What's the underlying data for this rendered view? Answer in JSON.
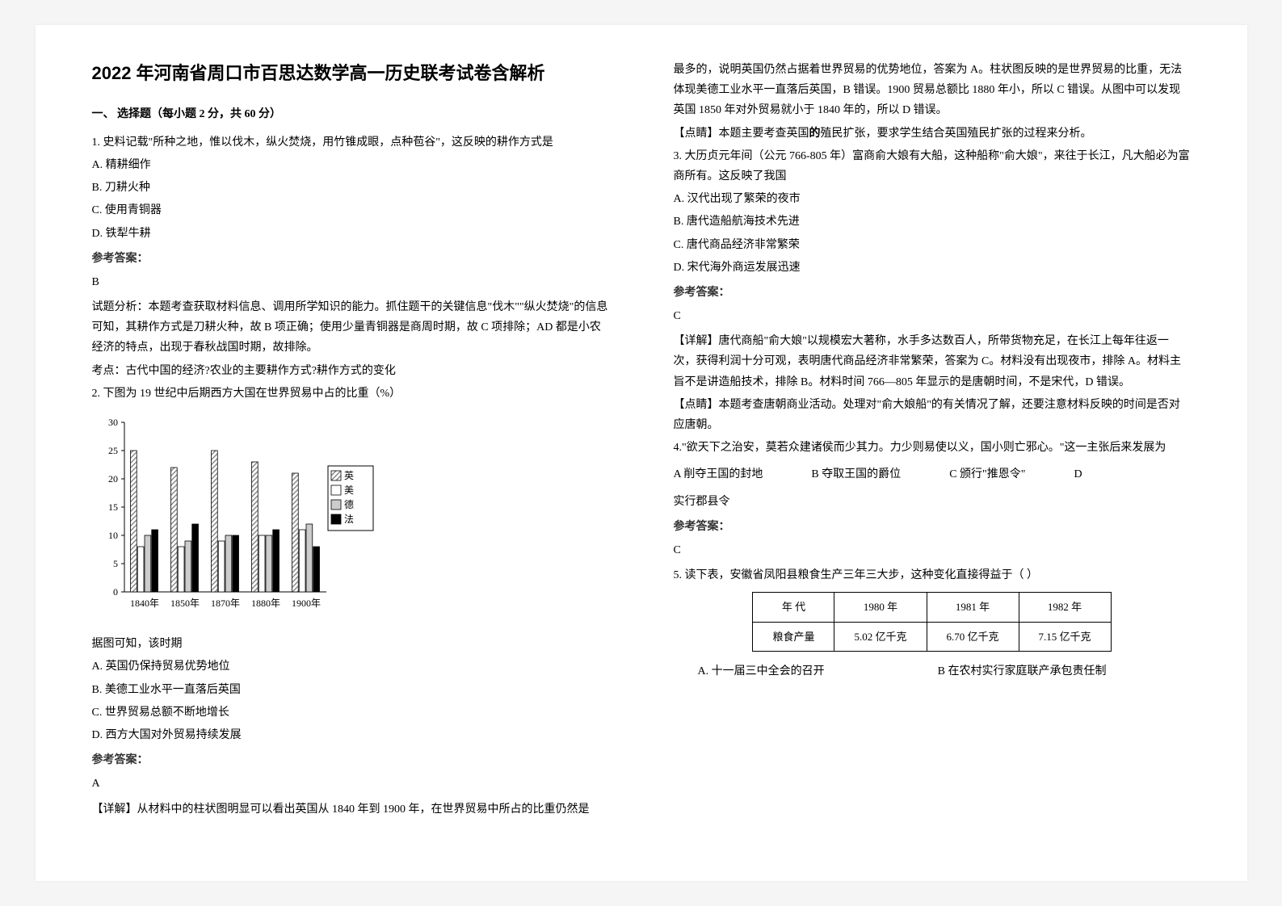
{
  "title": "2022 年河南省周口市百思达数学高一历史联考试卷含解析",
  "section1_head": "一、 选择题（每小题 2 分，共 60 分）",
  "q1": {
    "stem": "1. 史料记载\"所种之地，惟以伐木，纵火焚烧，用竹锥成眼，点种苞谷\"，这反映的耕作方式是",
    "A": "A. 精耕细作",
    "B": "B. 刀耕火种",
    "C": "C. 使用青铜器",
    "D": "D. 铁犁牛耕",
    "ref_label": "参考答案：",
    "answer": "B",
    "exp1": "试题分析：本题考查获取材料信息、调用所学知识的能力。抓住题干的关键信息\"伐木\"\"纵火焚烧\"的信息可知，其耕作方式是刀耕火种，故 B 项正确；使用少量青铜器是商周时期，故 C 项排除；AD 都是小农经济的特点，出现于春秋战国时期，故排除。",
    "exp2": "考点：古代中国的经济?农业的主要耕作方式?耕作方式的变化"
  },
  "q2": {
    "stem": "2. 下图为 19 世纪中后期西方大国在世界贸易中占的比重（%）",
    "chart": {
      "type": "bar",
      "categories": [
        "1840年",
        "1850年",
        "1870年",
        "1880年",
        "1900年"
      ],
      "series": [
        {
          "name": "英",
          "values": [
            25,
            22,
            25,
            23,
            21
          ],
          "fill": "hatch",
          "color": "#888888"
        },
        {
          "name": "美",
          "values": [
            8,
            8,
            9,
            10,
            11
          ],
          "fill": "solid",
          "color": "#ffffff",
          "stroke": "#000000"
        },
        {
          "name": "德",
          "values": [
            10,
            9,
            10,
            10,
            12
          ],
          "fill": "solid",
          "color": "#cccccc"
        },
        {
          "name": "法",
          "values": [
            11,
            12,
            10,
            11,
            8
          ],
          "fill": "solid",
          "color": "#000000"
        }
      ],
      "ylim": [
        0,
        30
      ],
      "ytick_step": 5,
      "bar_group_width": 0.7,
      "background": "#ffffff",
      "axis_color": "#000000",
      "legend_position": "right",
      "legend_border": "#000000"
    },
    "after_chart": "据图可知，该时期",
    "A": "A. 英国仍保持贸易优势地位",
    "B": "B. 美德工业水平一直落后英国",
    "C": "C. 世界贸易总额不断地增长",
    "D": "D. 西方大国对外贸易持续发展",
    "ref_label": "参考答案：",
    "answer": "A",
    "exp1": "【详解】从材料中的柱状图明显可以看出英国从 1840 年到 1900 年，在世界贸易中所占的比重仍然是"
  },
  "col2_cont": {
    "line1": "最多的，说明英国仍然占据着世界贸易的优势地位，答案为 A。柱状图反映的是世界贸易的比重，无法体现美德工业水平一直落后英国，B 错误。1900 贸易总额比 1880 年小，所以 C 错误。从图中可以发现英国 1850 年对外贸易就小于 1840 年的，所以 D 错误。",
    "line2a": "【点睛】本题主要考查英国",
    "line2b": "的",
    "line2c": "殖民扩张，要求学生结合英国殖民扩张的过程来分析。"
  },
  "q3": {
    "stem": "3. 大历贞元年间（公元 766-805 年）富商俞大娘有大船，这种船称\"俞大娘\"，来往于长江，凡大船必为富商所有。这反映了我国",
    "A": "A. 汉代出现了繁荣的夜市",
    "B": "B. 唐代造船航海技术先进",
    "C": "C. 唐代商品经济非常繁荣",
    "D": "D. 宋代海外商运发展迅速",
    "ref_label": "参考答案：",
    "answer": "C",
    "exp1": "【详解】唐代商船\"俞大娘\"以规模宏大著称，水手多达数百人，所带货物充足，在长江上每年往返一次，获得利润十分可观，表明唐代商品经济非常繁荣，答案为 C。材料没有出现夜市，排除 A。材料主旨不是讲造船技术，排除 B。材料时间 766—805 年显示的是唐朝时间，不是宋代，D 错误。",
    "exp2": "【点睛】本题考查唐朝商业活动。处理对\"俞大娘船\"的有关情况了解，还要注意材料反映的时间是否对应唐朝。"
  },
  "q4": {
    "stem": "4.\"欲天下之治安，莫若众建诸侯而少其力。力少则易使以义，国小则亡邪心。\"这一主张后来发展为",
    "A": "A 削夺王国的封地",
    "B": "B 夺取王国的爵位",
    "C": "C 颁行\"推恩令\"",
    "D_prefix": "D",
    "D_rest": "实行郡县令",
    "ref_label": "参考答案：",
    "answer": "C"
  },
  "q5": {
    "stem": "5. 读下表，安徽省凤阳县粮食生产三年三大步，这种变化直接得益于（   ）",
    "table": {
      "header": [
        "年        代",
        "1980 年",
        "1981 年",
        "1982 年"
      ],
      "row": [
        "粮食产量",
        "5.02 亿千克",
        "6.70 亿千克",
        "7.15 亿千克"
      ],
      "border_color": "#000000",
      "cell_padding": 6
    },
    "A": "A. 十一届三中全会的召开",
    "B": "B 在农村实行家庭联产承包责任制"
  }
}
